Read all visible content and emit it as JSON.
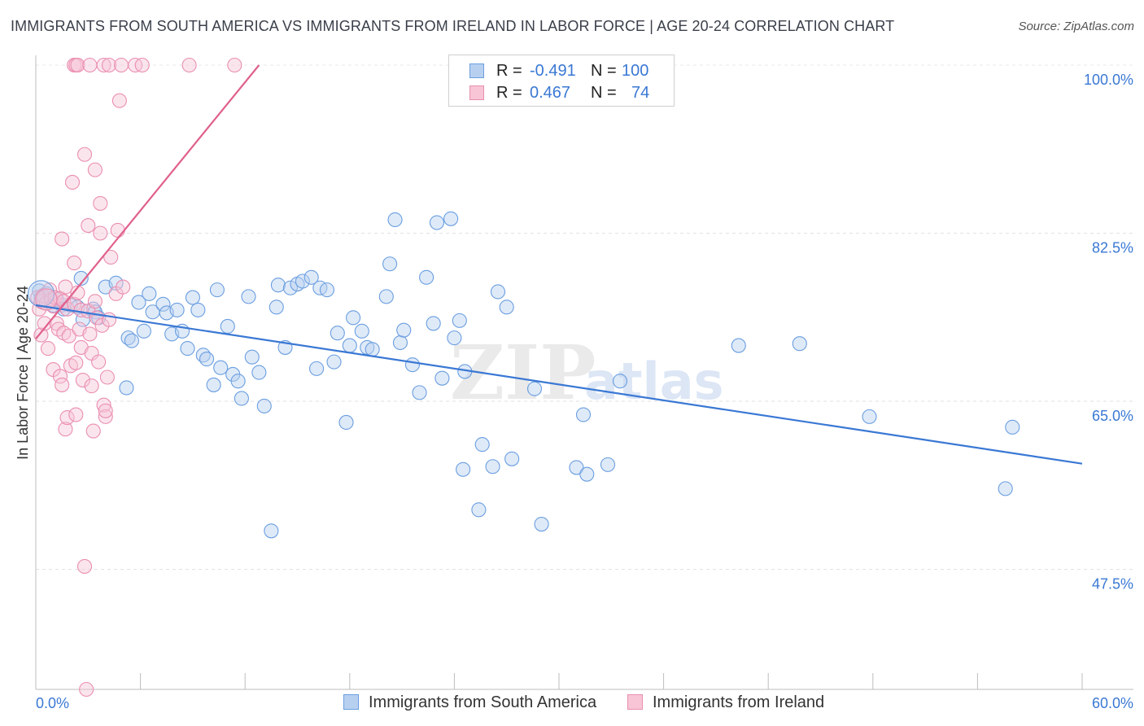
{
  "title": "IMMIGRANTS FROM SOUTH AMERICA VS IMMIGRANTS FROM IRELAND IN LABOR FORCE | AGE 20-24 CORRELATION CHART",
  "source": "Source: ZipAtlas.com",
  "watermark": {
    "zip": "ZIP",
    "atlas": "atlas"
  },
  "legend": {
    "r_label": "R =",
    "n_label": "N =",
    "rows": [
      {
        "r": "-0.491",
        "n": "100"
      },
      {
        "r": "0.467",
        "n": "74"
      }
    ]
  },
  "chart_data": {
    "type": "scatter",
    "title": "IMMIGRANTS FROM SOUTH AMERICA VS IMMIGRANTS FROM IRELAND IN LABOR FORCE | AGE 20-24 CORRELATION CHART",
    "xlabel": "",
    "ylabel": "In Labor Force | Age 20-24",
    "xlim": [
      0,
      60
    ],
    "ylim": [
      35,
      100
    ],
    "x_tick_labels": [
      "0.0%",
      "60.0%"
    ],
    "y_ticks": [
      47.5,
      65.0,
      82.5,
      100.0
    ],
    "y_tick_labels": [
      "47.5%",
      "65.0%",
      "82.5%",
      "100.0%"
    ],
    "grid": true,
    "legend_position": "bottom",
    "series": [
      {
        "name": "Immigrants from South America",
        "color": "#6a9ee0",
        "fill": "#b8d0f0",
        "line_color": "#3a78d4",
        "trend": {
          "x0": 0,
          "y0": 75.0,
          "x1": 60,
          "y1": 58.5
        },
        "points": [
          [
            0.2,
            76.5
          ],
          [
            0.3,
            75.8
          ],
          [
            0.4,
            75.3
          ],
          [
            0.5,
            75.8
          ],
          [
            0.6,
            76.2
          ],
          [
            0.8,
            75.5
          ],
          [
            1.0,
            75.0
          ],
          [
            1.2,
            75.6
          ],
          [
            1.5,
            75.0
          ],
          [
            1.6,
            74.6
          ],
          [
            2.0,
            75.0
          ],
          [
            2.4,
            74.8
          ],
          [
            2.6,
            77.8
          ],
          [
            2.7,
            73.5
          ],
          [
            3.3,
            74.6
          ],
          [
            3.4,
            74.3
          ],
          [
            3.6,
            73.7
          ],
          [
            4.0,
            76.9
          ],
          [
            4.6,
            77.3
          ],
          [
            5.2,
            66.4
          ],
          [
            5.3,
            71.6
          ],
          [
            5.5,
            71.3
          ],
          [
            5.9,
            75.3
          ],
          [
            6.2,
            72.3
          ],
          [
            6.5,
            76.2
          ],
          [
            6.7,
            74.3
          ],
          [
            7.3,
            75.1
          ],
          [
            7.5,
            74.2
          ],
          [
            7.8,
            72.0
          ],
          [
            8.1,
            74.5
          ],
          [
            8.4,
            72.3
          ],
          [
            8.7,
            70.5
          ],
          [
            9.0,
            75.8
          ],
          [
            9.3,
            74.5
          ],
          [
            9.6,
            69.8
          ],
          [
            9.8,
            69.4
          ],
          [
            10.2,
            66.7
          ],
          [
            10.4,
            76.6
          ],
          [
            10.6,
            68.5
          ],
          [
            11.0,
            72.8
          ],
          [
            11.3,
            67.8
          ],
          [
            11.6,
            67.1
          ],
          [
            11.8,
            65.3
          ],
          [
            12.2,
            75.9
          ],
          [
            12.4,
            69.6
          ],
          [
            12.8,
            68.0
          ],
          [
            13.1,
            64.5
          ],
          [
            13.5,
            51.5
          ],
          [
            13.8,
            74.8
          ],
          [
            13.9,
            77.1
          ],
          [
            14.3,
            70.6
          ],
          [
            14.6,
            76.8
          ],
          [
            15.0,
            77.2
          ],
          [
            15.3,
            77.5
          ],
          [
            15.8,
            77.9
          ],
          [
            16.1,
            68.4
          ],
          [
            16.3,
            76.8
          ],
          [
            16.7,
            76.6
          ],
          [
            17.1,
            69.1
          ],
          [
            17.3,
            72.1
          ],
          [
            17.8,
            62.8
          ],
          [
            18.0,
            70.8
          ],
          [
            18.2,
            73.7
          ],
          [
            18.7,
            72.3
          ],
          [
            19.0,
            70.6
          ],
          [
            19.3,
            70.4
          ],
          [
            20.1,
            75.9
          ],
          [
            20.3,
            79.3
          ],
          [
            20.6,
            83.9
          ],
          [
            20.9,
            71.1
          ],
          [
            21.1,
            72.4
          ],
          [
            21.6,
            68.8
          ],
          [
            22.0,
            65.9
          ],
          [
            22.4,
            77.9
          ],
          [
            22.8,
            73.1
          ],
          [
            23.0,
            83.6
          ],
          [
            23.3,
            67.4
          ],
          [
            23.8,
            84.0
          ],
          [
            24.0,
            71.6
          ],
          [
            24.3,
            73.4
          ],
          [
            24.5,
            57.9
          ],
          [
            24.6,
            68.1
          ],
          [
            25.4,
            53.7
          ],
          [
            25.6,
            60.5
          ],
          [
            26.2,
            58.2
          ],
          [
            26.5,
            76.4
          ],
          [
            27.0,
            74.8
          ],
          [
            27.3,
            59.0
          ],
          [
            28.6,
            66.3
          ],
          [
            29.0,
            52.2
          ],
          [
            31.0,
            58.1
          ],
          [
            31.4,
            63.6
          ],
          [
            31.6,
            57.4
          ],
          [
            32.8,
            58.4
          ],
          [
            33.5,
            67.1
          ],
          [
            40.3,
            70.8
          ],
          [
            43.8,
            71.0
          ],
          [
            47.8,
            63.4
          ],
          [
            55.6,
            55.9
          ],
          [
            56.0,
            62.3
          ]
        ]
      },
      {
        "name": "Immigrants from Ireland",
        "color": "#ea8eb0",
        "fill": "#f7c5d6",
        "line_color": "#e0608c",
        "trend": {
          "x0": 0,
          "y0": 71.5,
          "x1": 12.8,
          "y1": 100.0
        },
        "points": [
          [
            0.1,
            75.8
          ],
          [
            0.2,
            74.6
          ],
          [
            0.3,
            75.4
          ],
          [
            0.3,
            71.9
          ],
          [
            0.4,
            76.0
          ],
          [
            0.5,
            73.1
          ],
          [
            0.6,
            75.2
          ],
          [
            0.7,
            70.5
          ],
          [
            0.8,
            76.6
          ],
          [
            0.9,
            75.6
          ],
          [
            1.0,
            74.9
          ],
          [
            1.0,
            68.3
          ],
          [
            1.1,
            75.8
          ],
          [
            1.2,
            73.1
          ],
          [
            1.3,
            72.5
          ],
          [
            1.4,
            67.6
          ],
          [
            1.4,
            75.7
          ],
          [
            1.5,
            66.7
          ],
          [
            1.5,
            81.9
          ],
          [
            1.6,
            75.4
          ],
          [
            1.6,
            72.1
          ],
          [
            1.7,
            62.1
          ],
          [
            1.7,
            76.9
          ],
          [
            1.8,
            63.3
          ],
          [
            1.8,
            74.6
          ],
          [
            1.9,
            71.8
          ],
          [
            2.0,
            68.7
          ],
          [
            2.1,
            87.8
          ],
          [
            2.2,
            79.4
          ],
          [
            2.2,
            75.1
          ],
          [
            2.3,
            63.6
          ],
          [
            2.3,
            69.0
          ],
          [
            2.4,
            76.3
          ],
          [
            2.5,
            72.5
          ],
          [
            2.6,
            74.5
          ],
          [
            2.6,
            70.6
          ],
          [
            2.7,
            67.2
          ],
          [
            2.8,
            90.7
          ],
          [
            2.8,
            47.8
          ],
          [
            2.9,
            35.0
          ],
          [
            3.0,
            83.3
          ],
          [
            3.0,
            74.4
          ],
          [
            3.1,
            72.0
          ],
          [
            3.2,
            70.0
          ],
          [
            3.2,
            66.6
          ],
          [
            3.3,
            61.9
          ],
          [
            3.4,
            89.1
          ],
          [
            3.4,
            75.4
          ],
          [
            3.5,
            73.7
          ],
          [
            3.6,
            69.1
          ],
          [
            3.7,
            85.6
          ],
          [
            3.7,
            82.5
          ],
          [
            3.8,
            72.9
          ],
          [
            3.9,
            64.6
          ],
          [
            4.0,
            63.4
          ],
          [
            4.0,
            64.0
          ],
          [
            4.1,
            67.5
          ],
          [
            4.2,
            73.5
          ],
          [
            4.3,
            80.0
          ],
          [
            4.6,
            76.2
          ],
          [
            4.7,
            82.8
          ],
          [
            4.8,
            96.3
          ],
          [
            5.0,
            76.9
          ],
          [
            2.2,
            100.0
          ],
          [
            2.3,
            100.0
          ],
          [
            2.4,
            100.0
          ],
          [
            3.1,
            100.0
          ],
          [
            3.9,
            100.0
          ],
          [
            4.2,
            100.0
          ],
          [
            4.9,
            100.0
          ],
          [
            5.7,
            100.0
          ],
          [
            6.1,
            100.0
          ],
          [
            8.8,
            100.0
          ],
          [
            11.4,
            100.0
          ]
        ]
      }
    ]
  }
}
